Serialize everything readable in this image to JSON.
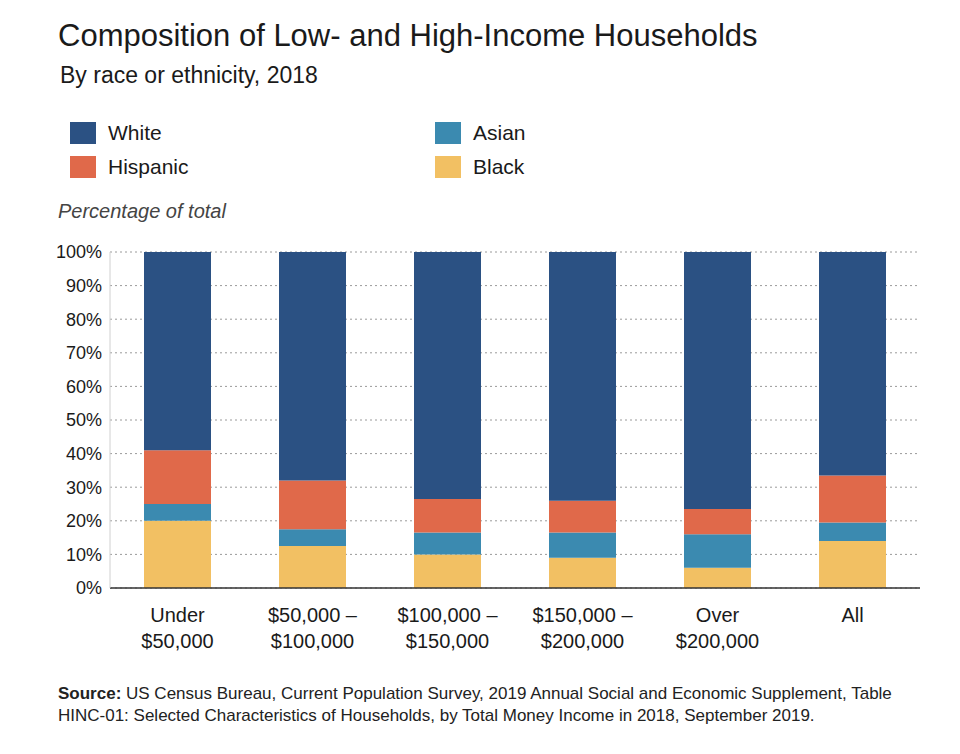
{
  "chart_data": {
    "type": "bar",
    "title": "Composition of Low- and High-Income Households",
    "subtitle": "By race or ethnicity, 2018",
    "y_label": "Percentage of total",
    "categories": [
      "Under $50,000",
      "$50,000 – $100,000",
      "$100,000 – $150,000",
      "$150,000 – $200,000",
      "Over $200,000",
      "All"
    ],
    "series": [
      {
        "name": "White",
        "color": "#2b5183",
        "values": [
          59,
          68,
          73.5,
          74,
          76.5,
          66.5
        ]
      },
      {
        "name": "Hispanic",
        "color": "#e0694a",
        "values": [
          16,
          14.5,
          10,
          9.5,
          7.5,
          14
        ]
      },
      {
        "name": "Asian",
        "color": "#3b8ab0",
        "values": [
          5,
          5,
          6.5,
          7.5,
          10,
          5.5
        ]
      },
      {
        "name": "Black",
        "color": "#f2c063",
        "values": [
          20,
          12.5,
          10,
          9,
          6,
          14
        ]
      }
    ],
    "stacked": true,
    "grid": true,
    "ylim": [
      0,
      100
    ],
    "yticks": [
      {
        "value": 0,
        "label": "0%"
      },
      {
        "value": 10,
        "label": "10%"
      },
      {
        "value": 20,
        "label": "20%"
      },
      {
        "value": 30,
        "label": "30%"
      },
      {
        "value": 40,
        "label": "40%"
      },
      {
        "value": 50,
        "label": "50%"
      },
      {
        "value": 60,
        "label": "60%"
      },
      {
        "value": 70,
        "label": "70%"
      },
      {
        "value": 80,
        "label": "80%"
      },
      {
        "value": 90,
        "label": "90%"
      },
      {
        "value": 100,
        "label": "100%"
      }
    ],
    "source_label": "Source:",
    "source": "US Census Bureau, Current Population Survey, 2019 Annual Social and Economic Supplement, Table HINC-01: Selected Characteristics of Households, by Total Money Income in 2018, September 2019."
  }
}
